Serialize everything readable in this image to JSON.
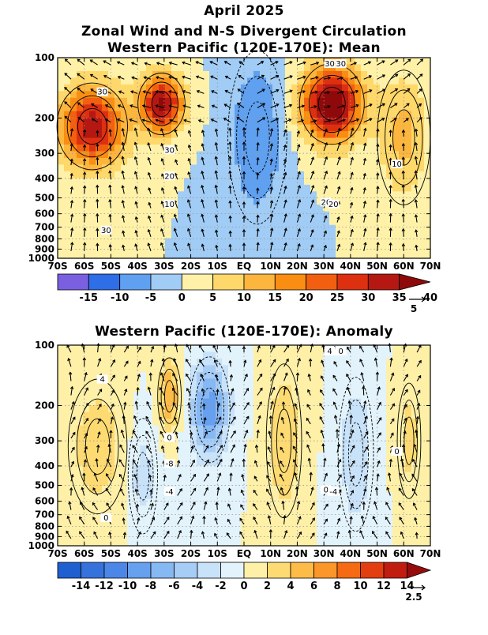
{
  "title": {
    "line1": "April 2025",
    "line2": "Zonal Wind and N-S Divergent Circulation"
  },
  "chart_data": [
    {
      "type": "heatmap",
      "title": "Western Pacific (120E-170E): Mean",
      "x_tick_labels": [
        "70S",
        "60S",
        "50S",
        "40S",
        "30S",
        "20S",
        "10S",
        "EQ",
        "10N",
        "20N",
        "30N",
        "40N",
        "50N",
        "60N",
        "70N"
      ],
      "y_tick_labels": [
        "100",
        "200",
        "300",
        "400",
        "500",
        "600",
        "700",
        "800",
        "900",
        "1000"
      ],
      "y_levels": [
        100,
        200,
        300,
        400,
        500,
        600,
        700,
        800,
        900,
        1000
      ],
      "ylim": [
        100,
        1000
      ],
      "xlim": [
        -70,
        70
      ],
      "y_scale": "log",
      "y_reversed": true,
      "grid": true,
      "colorbar_ticks": [
        "-15",
        "-10",
        "-5",
        "0",
        "5",
        "10",
        "15",
        "20",
        "25",
        "30",
        "35",
        "40"
      ],
      "colorbar_colors": [
        "#7a5fe0",
        "#2e6ee6",
        "#5fa0f0",
        "#a0ccf5",
        "#fff2a8",
        "#fed86a",
        "#fcb63e",
        "#f98e12",
        "#f35f10",
        "#dd3010",
        "#b51812",
        "#8e0a0a"
      ],
      "vector_reference": "5",
      "contour_labels": [
        "30",
        "30",
        "30",
        "20",
        "10",
        "20",
        "30",
        "10",
        "20",
        "30"
      ],
      "centers": [
        {
          "lat": -57,
          "p": 220,
          "u": 34,
          "r_lat": 12,
          "r_lp": 0.45
        },
        {
          "lat": -31,
          "p": 170,
          "u": 37,
          "r_lat": 8,
          "r_lp": 0.32
        },
        {
          "lat": 33,
          "p": 170,
          "u": 42,
          "r_lat": 11,
          "r_lp": 0.42
        },
        {
          "lat": 5,
          "p": 250,
          "u": -10,
          "r_lat": 10,
          "r_lp": 0.9
        },
        {
          "lat": 60,
          "p": 250,
          "u": 12,
          "r_lat": 9,
          "r_lp": 0.7
        }
      ]
    },
    {
      "type": "heatmap",
      "title": "Western Pacific (120E-170E): Anomaly",
      "x_tick_labels": [
        "70S",
        "60S",
        "50S",
        "40S",
        "30S",
        "20S",
        "10S",
        "EQ",
        "10N",
        "20N",
        "30N",
        "40N",
        "50N",
        "60N",
        "70N"
      ],
      "y_tick_labels": [
        "100",
        "200",
        "300",
        "400",
        "500",
        "600",
        "700",
        "800",
        "900",
        "1000"
      ],
      "y_levels": [
        100,
        200,
        300,
        400,
        500,
        600,
        700,
        800,
        900,
        1000
      ],
      "ylim": [
        100,
        1000
      ],
      "xlim": [
        -70,
        70
      ],
      "y_scale": "log",
      "y_reversed": true,
      "grid": true,
      "colorbar_ticks": [
        "-14",
        "-12",
        "-10",
        "-8",
        "-6",
        "-4",
        "-2",
        "0",
        "2",
        "4",
        "6",
        "8",
        "10",
        "12",
        "14"
      ],
      "colorbar_colors": [
        "#1f5fd0",
        "#3572dc",
        "#4c86e6",
        "#66a0ee",
        "#86b8f3",
        "#a6cdf6",
        "#c8e2f9",
        "#e3f3fb",
        "#fff0a8",
        "#fedb72",
        "#fdbb48",
        "#fb9628",
        "#f56a12",
        "#e23e10",
        "#c01d10",
        "#960c0c"
      ],
      "vector_reference": "2.5",
      "contour_labels": [
        "4",
        "0",
        "4",
        "-8",
        "-4",
        "0",
        "0",
        "0",
        "-4",
        "0"
      ],
      "centers": [
        {
          "lat": -28,
          "p": 180,
          "u": 6,
          "r_lat": 4,
          "r_lp": 0.4
        },
        {
          "lat": -55,
          "p": 320,
          "u": 3.5,
          "r_lat": 10,
          "r_lp": 0.7
        },
        {
          "lat": -13,
          "p": 210,
          "u": -9,
          "r_lat": 7,
          "r_lp": 0.55
        },
        {
          "lat": 15,
          "p": 300,
          "u": 4,
          "r_lat": 6,
          "r_lp": 0.8
        },
        {
          "lat": 42,
          "p": 350,
          "u": -4,
          "r_lat": 6,
          "r_lp": 0.8
        },
        {
          "lat": 62,
          "p": 300,
          "u": 3,
          "r_lat": 4,
          "r_lp": 0.6
        },
        {
          "lat": -38,
          "p": 450,
          "u": -3,
          "r_lat": 5,
          "r_lp": 0.6
        }
      ]
    }
  ]
}
